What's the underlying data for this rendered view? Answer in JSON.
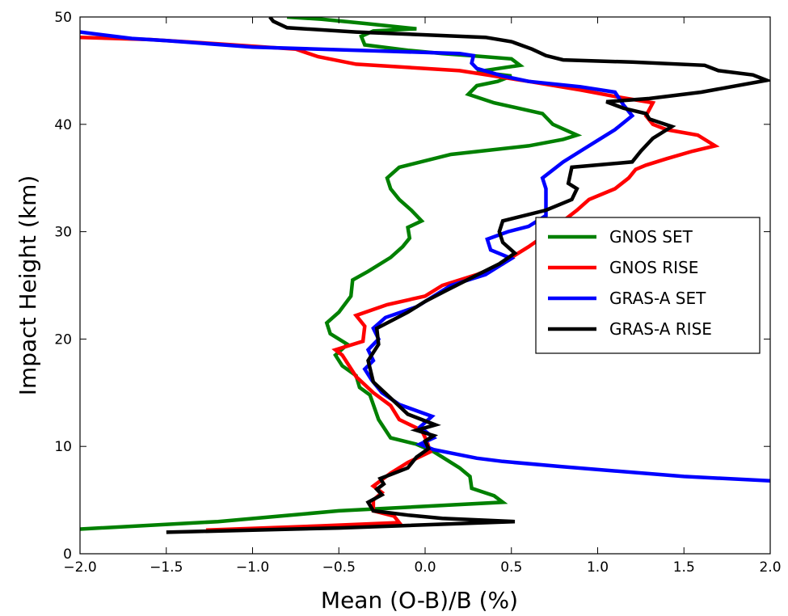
{
  "chart_data": {
    "type": "line",
    "title": "",
    "xlabel": "Mean (O-B)/B (%)",
    "ylabel": "Impact Height (km)",
    "xlim": [
      -2.0,
      2.0
    ],
    "ylim": [
      0,
      50
    ],
    "xticks": [
      -2.0,
      -1.5,
      -1.0,
      -0.5,
      0.0,
      0.5,
      1.0,
      1.5,
      2.0
    ],
    "xtick_labels": [
      "−2.0",
      "−1.5",
      "−1.0",
      "−0.5",
      "0.0",
      "0.5",
      "1.0",
      "1.5",
      "2.0"
    ],
    "yticks": [
      0,
      10,
      20,
      30,
      40,
      50
    ],
    "ytick_labels": [
      "0",
      "10",
      "20",
      "30",
      "40",
      "50"
    ],
    "grid": false,
    "legend_position": "center-right",
    "series": [
      {
        "name": "GNOS SET",
        "color": "#008000",
        "points": [
          [
            -2.0,
            2.3
          ],
          [
            -1.2,
            3.0
          ],
          [
            -0.5,
            4.0
          ],
          [
            0.45,
            4.8
          ],
          [
            0.4,
            5.4
          ],
          [
            0.27,
            6.1
          ],
          [
            0.26,
            7.2
          ],
          [
            0.2,
            8.0
          ],
          [
            0.05,
            9.5
          ],
          [
            -0.05,
            10.2
          ],
          [
            -0.2,
            10.8
          ],
          [
            -0.27,
            12.5
          ],
          [
            -0.32,
            14.8
          ],
          [
            -0.38,
            15.5
          ],
          [
            -0.4,
            16.6
          ],
          [
            -0.48,
            17.5
          ],
          [
            -0.52,
            18.5
          ],
          [
            -0.45,
            19.5
          ],
          [
            -0.55,
            20.5
          ],
          [
            -0.57,
            21.5
          ],
          [
            -0.5,
            22.5
          ],
          [
            -0.43,
            24.0
          ],
          [
            -0.42,
            25.5
          ],
          [
            -0.33,
            26.3
          ],
          [
            -0.2,
            27.6
          ],
          [
            -0.13,
            28.6
          ],
          [
            -0.09,
            29.4
          ],
          [
            -0.1,
            30.4
          ],
          [
            -0.02,
            31.0
          ],
          [
            -0.08,
            32.0
          ],
          [
            -0.15,
            33.0
          ],
          [
            -0.2,
            34.0
          ],
          [
            -0.22,
            35.0
          ],
          [
            -0.15,
            36.0
          ],
          [
            0.15,
            37.2
          ],
          [
            0.6,
            38.0
          ],
          [
            0.8,
            38.6
          ],
          [
            0.88,
            39.0
          ],
          [
            0.74,
            40.0
          ],
          [
            0.68,
            41.0
          ],
          [
            0.4,
            42.0
          ],
          [
            0.25,
            42.8
          ],
          [
            0.3,
            43.6
          ],
          [
            0.42,
            44.0
          ],
          [
            0.5,
            44.5
          ],
          [
            0.3,
            44.9
          ],
          [
            0.55,
            45.5
          ],
          [
            0.5,
            46.1
          ],
          [
            0.26,
            46.4
          ],
          [
            0.1,
            46.6
          ],
          [
            -0.1,
            46.9
          ],
          [
            -0.35,
            47.4
          ],
          [
            -0.37,
            48.2
          ],
          [
            -0.3,
            48.7
          ],
          [
            -0.05,
            48.9
          ],
          [
            -0.35,
            49.4
          ],
          [
            -0.6,
            49.8
          ],
          [
            -0.8,
            50.0
          ]
        ]
      },
      {
        "name": "GNOS RISE",
        "color": "#ff0000",
        "points": [
          [
            -1.27,
            2.2
          ],
          [
            -0.6,
            2.6
          ],
          [
            -0.15,
            2.9
          ],
          [
            -0.18,
            3.5
          ],
          [
            -0.3,
            4.0
          ],
          [
            -0.3,
            5.0
          ],
          [
            -0.25,
            5.7
          ],
          [
            -0.3,
            6.3
          ],
          [
            -0.2,
            7.5
          ],
          [
            -0.1,
            8.5
          ],
          [
            0.03,
            9.5
          ],
          [
            0.01,
            10.5
          ],
          [
            -0.02,
            11.5
          ],
          [
            -0.15,
            12.5
          ],
          [
            -0.2,
            13.8
          ],
          [
            -0.3,
            15.0
          ],
          [
            -0.4,
            16.5
          ],
          [
            -0.48,
            18.5
          ],
          [
            -0.52,
            19.0
          ],
          [
            -0.36,
            19.8
          ],
          [
            -0.35,
            21.2
          ],
          [
            -0.4,
            22.2
          ],
          [
            -0.22,
            23.2
          ],
          [
            0.0,
            24.0
          ],
          [
            0.1,
            25.0
          ],
          [
            0.3,
            26.0
          ],
          [
            0.45,
            27.0
          ],
          [
            0.52,
            27.8
          ],
          [
            0.6,
            28.6
          ],
          [
            0.68,
            29.5
          ],
          [
            0.75,
            30.2
          ],
          [
            0.8,
            31.0
          ],
          [
            0.88,
            32.0
          ],
          [
            0.95,
            33.0
          ],
          [
            1.1,
            34.0
          ],
          [
            1.18,
            35.0
          ],
          [
            1.22,
            35.8
          ],
          [
            1.28,
            36.2
          ],
          [
            1.4,
            36.8
          ],
          [
            1.55,
            37.5
          ],
          [
            1.68,
            38.0
          ],
          [
            1.58,
            39.0
          ],
          [
            1.4,
            39.5
          ],
          [
            1.32,
            40.0
          ],
          [
            1.28,
            40.8
          ],
          [
            1.32,
            42.0
          ],
          [
            1.1,
            42.6
          ],
          [
            0.9,
            43.2
          ],
          [
            0.6,
            44.0
          ],
          [
            0.4,
            44.5
          ],
          [
            0.2,
            45.0
          ],
          [
            -0.4,
            45.6
          ],
          [
            -0.62,
            46.3
          ],
          [
            -0.75,
            47.0
          ],
          [
            -1.2,
            47.5
          ],
          [
            -1.6,
            47.9
          ],
          [
            -2.0,
            48.1
          ]
        ]
      },
      {
        "name": "GRAS-A SET",
        "color": "#0000ff",
        "points": [
          [
            2.0,
            6.8
          ],
          [
            1.5,
            7.2
          ],
          [
            0.8,
            8.1
          ],
          [
            0.45,
            8.6
          ],
          [
            0.3,
            8.9
          ],
          [
            0.05,
            9.7
          ],
          [
            -0.03,
            10.2
          ],
          [
            0.05,
            10.8
          ],
          [
            -0.03,
            11.8
          ],
          [
            0.04,
            12.8
          ],
          [
            -0.15,
            13.9
          ],
          [
            -0.25,
            15.0
          ],
          [
            -0.31,
            16.2
          ],
          [
            -0.35,
            17.2
          ],
          [
            -0.3,
            18.0
          ],
          [
            -0.33,
            19.0
          ],
          [
            -0.27,
            20.0
          ],
          [
            -0.3,
            21.0
          ],
          [
            -0.23,
            22.0
          ],
          [
            -0.05,
            23.0
          ],
          [
            0.05,
            24.0
          ],
          [
            0.15,
            25.0
          ],
          [
            0.35,
            26.0
          ],
          [
            0.45,
            27.0
          ],
          [
            0.5,
            27.5
          ],
          [
            0.38,
            28.3
          ],
          [
            0.36,
            29.3
          ],
          [
            0.48,
            30.0
          ],
          [
            0.6,
            30.5
          ],
          [
            0.7,
            31.5
          ],
          [
            0.7,
            33.0
          ],
          [
            0.7,
            34.0
          ],
          [
            0.68,
            35.0
          ],
          [
            0.8,
            36.5
          ],
          [
            0.9,
            37.5
          ],
          [
            1.0,
            38.5
          ],
          [
            1.1,
            39.5
          ],
          [
            1.2,
            40.8
          ],
          [
            1.15,
            41.8
          ],
          [
            1.1,
            43.0
          ],
          [
            0.9,
            43.5
          ],
          [
            0.6,
            44.0
          ],
          [
            0.45,
            44.5
          ],
          [
            0.3,
            45.2
          ],
          [
            0.27,
            45.7
          ],
          [
            0.28,
            46.4
          ],
          [
            0.2,
            46.6
          ],
          [
            -0.2,
            46.8
          ],
          [
            -1.0,
            47.2
          ],
          [
            -1.5,
            47.8
          ],
          [
            -1.7,
            48.0
          ],
          [
            -2.0,
            48.6
          ]
        ]
      },
      {
        "name": "GRAS-A RISE",
        "color": "#000000",
        "points": [
          [
            -1.5,
            2.0
          ],
          [
            -0.5,
            2.4
          ],
          [
            0.52,
            3.0
          ],
          [
            0.1,
            3.3
          ],
          [
            -0.1,
            3.6
          ],
          [
            -0.3,
            4.0
          ],
          [
            -0.33,
            4.8
          ],
          [
            -0.25,
            5.5
          ],
          [
            -0.28,
            6.0
          ],
          [
            -0.24,
            6.5
          ],
          [
            -0.26,
            7.0
          ],
          [
            -0.1,
            8.0
          ],
          [
            -0.05,
            9.0
          ],
          [
            0.02,
            9.8
          ],
          [
            0.0,
            10.5
          ],
          [
            0.05,
            11.0
          ],
          [
            -0.05,
            11.5
          ],
          [
            0.06,
            12.0
          ],
          [
            -0.1,
            13.0
          ],
          [
            -0.2,
            14.5
          ],
          [
            -0.3,
            16.0
          ],
          [
            -0.33,
            18.0
          ],
          [
            -0.27,
            19.5
          ],
          [
            -0.28,
            21.0
          ],
          [
            -0.1,
            22.5
          ],
          [
            0.0,
            23.5
          ],
          [
            0.12,
            24.5
          ],
          [
            0.28,
            25.8
          ],
          [
            0.43,
            27.0
          ],
          [
            0.52,
            28.0
          ],
          [
            0.45,
            29.0
          ],
          [
            0.43,
            30.0
          ],
          [
            0.45,
            31.0
          ],
          [
            0.7,
            32.0
          ],
          [
            0.85,
            33.0
          ],
          [
            0.88,
            34.0
          ],
          [
            0.83,
            34.5
          ],
          [
            0.85,
            36.0
          ],
          [
            1.2,
            36.5
          ],
          [
            1.25,
            37.5
          ],
          [
            1.32,
            38.7
          ],
          [
            1.43,
            39.8
          ],
          [
            1.3,
            40.5
          ],
          [
            1.28,
            41.0
          ],
          [
            1.15,
            41.5
          ],
          [
            1.05,
            42.1
          ],
          [
            1.3,
            42.4
          ],
          [
            1.6,
            43.0
          ],
          [
            1.98,
            44.1
          ],
          [
            1.9,
            44.6
          ],
          [
            1.7,
            45.0
          ],
          [
            1.62,
            45.5
          ],
          [
            1.2,
            45.8
          ],
          [
            0.8,
            46.0
          ],
          [
            0.7,
            46.4
          ],
          [
            0.62,
            47.0
          ],
          [
            0.5,
            47.7
          ],
          [
            0.35,
            48.1
          ],
          [
            -0.4,
            48.6
          ],
          [
            -0.8,
            49.0
          ],
          [
            -0.88,
            49.6
          ],
          [
            -0.9,
            50.0
          ]
        ]
      }
    ]
  }
}
